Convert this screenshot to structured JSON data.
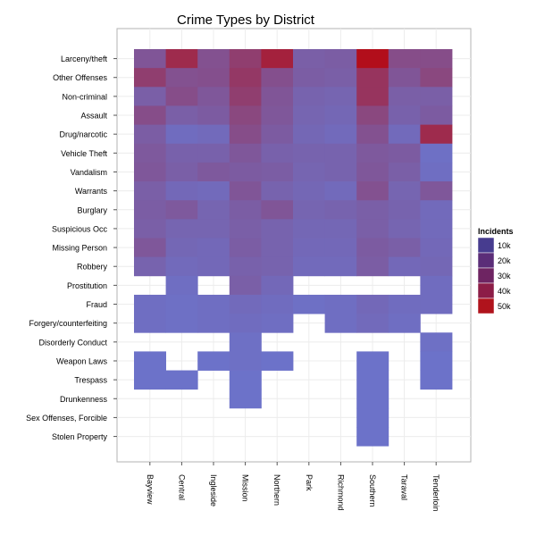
{
  "chart_data": {
    "type": "heatmap",
    "title": "Crime Types by District",
    "xlabel": "",
    "ylabel": "",
    "x_categories": [
      "Bayview",
      "Central",
      "Ingleside",
      "Mission",
      "Northern",
      "Park",
      "Richmond",
      "Southern",
      "Taraval",
      "Tenderloin"
    ],
    "y_categories": [
      "Larceny/theft",
      "Other Offenses",
      "Non-criminal",
      "Assault",
      "Drug/narcotic",
      "Vehicle Theft",
      "Vandalism",
      "Warrants",
      "Burglary",
      "Suspicious Occ",
      "Missing Person",
      "Robbery",
      "Prostitution",
      "Fraud",
      "Forgery/counterfeiting",
      "Disorderly Conduct",
      "Weapon Laws",
      "Trespass",
      "Drunkenness",
      "Sex Offenses, Forcible",
      "Stolen Property"
    ],
    "values": [
      [
        18000,
        40000,
        20000,
        30000,
        45000,
        13000,
        14000,
        55000,
        22000,
        22000
      ],
      [
        30000,
        20000,
        21000,
        33000,
        21000,
        14000,
        13000,
        35000,
        18000,
        25000
      ],
      [
        13000,
        22000,
        17000,
        30000,
        18000,
        11000,
        10000,
        35000,
        13000,
        13000
      ],
      [
        22000,
        13000,
        15000,
        25000,
        17000,
        10000,
        9000,
        25000,
        12000,
        15000
      ],
      [
        14000,
        6000,
        7000,
        22000,
        15000,
        9000,
        7000,
        20000,
        7000,
        40000
      ],
      [
        16000,
        12000,
        12000,
        17000,
        12000,
        11000,
        11000,
        16000,
        15000,
        4000
      ],
      [
        17000,
        13000,
        16000,
        15000,
        14000,
        10000,
        11000,
        17000,
        13000,
        5000
      ],
      [
        13000,
        8000,
        7000,
        18000,
        11000,
        9000,
        7000,
        20000,
        10000,
        17000
      ],
      [
        14000,
        16000,
        10000,
        14000,
        18000,
        10000,
        11000,
        13000,
        11000,
        7000
      ],
      [
        13000,
        10000,
        10000,
        13000,
        11000,
        9000,
        9000,
        13000,
        10000,
        7000
      ],
      [
        17000,
        9000,
        8000,
        14000,
        11000,
        8000,
        8000,
        15000,
        13000,
        8000
      ],
      [
        11000,
        7000,
        8000,
        12000,
        11000,
        7000,
        7000,
        14000,
        8000,
        9000
      ],
      [
        null,
        5000,
        null,
        13000,
        8000,
        null,
        null,
        null,
        null,
        6000
      ],
      [
        5000,
        4000,
        5000,
        7000,
        6000,
        4000,
        5000,
        8000,
        6000,
        6000
      ],
      [
        5000,
        4000,
        5000,
        6000,
        5000,
        null,
        5000,
        7000,
        5000,
        null
      ],
      [
        null,
        null,
        null,
        4000,
        null,
        null,
        null,
        null,
        null,
        4000
      ],
      [
        3000,
        null,
        3000,
        4000,
        3000,
        null,
        null,
        3000,
        null,
        3000
      ],
      [
        3000,
        3000,
        null,
        3000,
        null,
        null,
        null,
        3000,
        null,
        3000
      ],
      [
        null,
        null,
        null,
        3000,
        null,
        null,
        null,
        3000,
        null,
        null
      ],
      [
        null,
        null,
        null,
        null,
        null,
        null,
        null,
        3000,
        null,
        null
      ],
      [
        null,
        null,
        null,
        null,
        null,
        null,
        null,
        3000,
        null,
        null
      ]
    ],
    "legend": {
      "title": "Incidents",
      "position": "right",
      "entries": [
        "10k",
        "20k",
        "30k",
        "40k",
        "50k"
      ],
      "breaks": [
        10000,
        20000,
        30000,
        40000,
        50000
      ],
      "colors": [
        "#473c8f",
        "#5b2d78",
        "#6e2462",
        "#8c1d47",
        "#b0131c"
      ]
    },
    "color_scale": {
      "low": "#6b74cc",
      "high": "#b30c18",
      "min": 2000,
      "max": 56000
    },
    "grid": true
  }
}
